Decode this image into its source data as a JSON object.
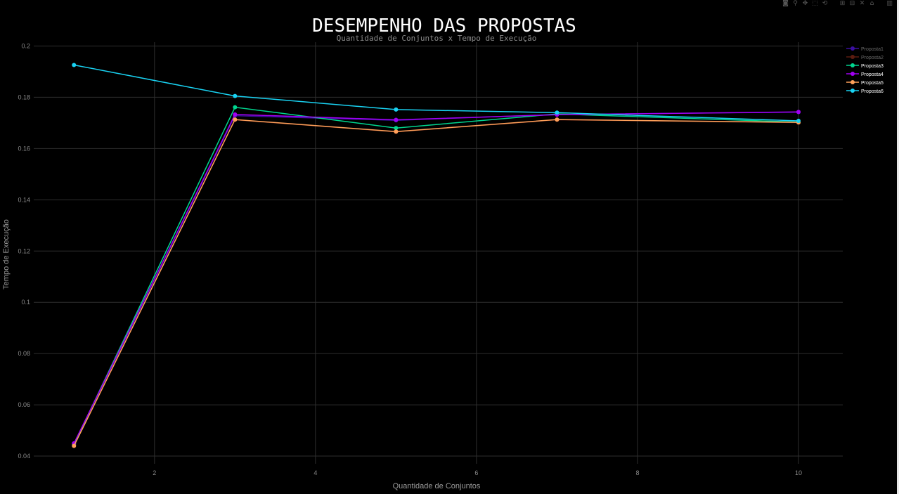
{
  "modebar": [
    {
      "name": "camera-icon",
      "glyph": "◙"
    },
    {
      "name": "zoom-icon",
      "glyph": "⚲"
    },
    {
      "name": "pan-icon",
      "glyph": "✥"
    },
    {
      "name": "box-select-icon",
      "glyph": "⬚"
    },
    {
      "name": "lasso-icon",
      "glyph": "⟲"
    },
    {
      "name": "gap"
    },
    {
      "name": "zoom-in-icon",
      "glyph": "⊞"
    },
    {
      "name": "zoom-out-icon",
      "glyph": "⊟"
    },
    {
      "name": "autoscale-icon",
      "glyph": "✕"
    },
    {
      "name": "home-icon",
      "glyph": "⌂"
    },
    {
      "name": "gap"
    },
    {
      "name": "plotly-logo-icon",
      "glyph": "▥"
    }
  ],
  "chart_data": {
    "type": "line",
    "title": "DESEMPENHO DAS PROPOSTAS",
    "subtitle": "Quantidade de Conjuntos x Tempo de Execução",
    "xlabel": "Quantidade de Conjuntos",
    "ylabel": "Tempo de Execução",
    "xlim": [
      0.5,
      10.55
    ],
    "ylim": [
      0.037,
      0.2015
    ],
    "xticks": [
      2,
      4,
      6,
      8,
      10
    ],
    "yticks": [
      0.04,
      0.06,
      0.08,
      0.1,
      0.12,
      0.14,
      0.16,
      0.18,
      0.2
    ],
    "xtick_labels": [
      "2",
      "4",
      "6",
      "8",
      "10"
    ],
    "ytick_labels": [
      "0.04",
      "0.06",
      "0.08",
      "0.1",
      "0.12",
      "0.14",
      "0.16",
      "0.18",
      "0.2"
    ],
    "grid": true,
    "legend_position": "top-right",
    "x": [
      1,
      3,
      5,
      7,
      10
    ],
    "series": [
      {
        "name": "Proposta1",
        "color": "#3b0fa0",
        "active": false,
        "values": [
          0.0447,
          0.1728,
          0.171,
          0.1733,
          0.1742
        ]
      },
      {
        "name": "Proposta2",
        "color": "#5c1c10",
        "active": false,
        "values": [
          0.0442,
          0.1712,
          0.1665,
          0.1712,
          0.1701
        ]
      },
      {
        "name": "Proposta3",
        "color": "#00d68f",
        "active": true,
        "values": [
          0.0447,
          0.1761,
          0.168,
          0.1735,
          0.1703
        ]
      },
      {
        "name": "Proposta4",
        "color": "#a100f2",
        "active": true,
        "values": [
          0.045,
          0.1733,
          0.1712,
          0.1732,
          0.1743
        ]
      },
      {
        "name": "Proposta5",
        "color": "#ffa15a",
        "active": true,
        "values": [
          0.044,
          0.1713,
          0.1666,
          0.1713,
          0.1702
        ]
      },
      {
        "name": "Proposta6",
        "color": "#19d3f3",
        "active": true,
        "values": [
          0.1926,
          0.1805,
          0.1752,
          0.174,
          0.1708
        ]
      }
    ]
  }
}
